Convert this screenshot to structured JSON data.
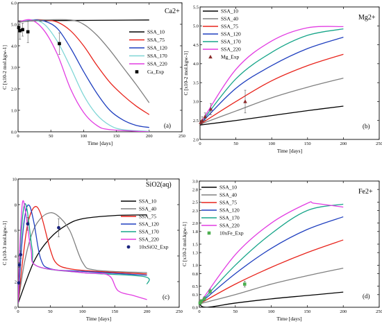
{
  "chart_data": [
    {
      "type": "line",
      "species": "Ca2+",
      "tag": "(a)",
      "xlabel": "Time [days]",
      "ylabel": "C [x10-2 mol.kgw-1]",
      "xlim": [
        0,
        250
      ],
      "ylim": [
        0.0,
        6.0
      ],
      "xticks": [
        "0",
        "50",
        "100",
        "150",
        "200",
        "250"
      ],
      "yticks": [
        "0.0",
        "1.0",
        "2.0",
        "3.0",
        "4.0",
        "5.0",
        "6.0"
      ],
      "legend_placement": "right",
      "series": [
        {
          "name": "SSA_10",
          "color": "#000000",
          "points": [
            [
              0,
              5.15
            ],
            [
              50,
              5.17
            ],
            [
              100,
              5.18
            ],
            [
              150,
              5.19
            ],
            [
              200,
              5.2
            ]
          ]
        },
        {
          "name": "SSA_75",
          "color": "#e8231b",
          "points": [
            [
              0,
              5.1
            ],
            [
              20,
              5.2
            ],
            [
              40,
              5.2
            ],
            [
              60,
              5.1
            ],
            [
              80,
              4.7
            ],
            [
              100,
              4.0
            ],
            [
              120,
              3.1
            ],
            [
              140,
              2.3
            ],
            [
              160,
              1.7
            ],
            [
              180,
              1.2
            ],
            [
              200,
              0.8
            ]
          ]
        },
        {
          "name": "SSA_120",
          "color": "#1f3fbf",
          "points": [
            [
              0,
              5.1
            ],
            [
              20,
              5.2
            ],
            [
              40,
              5.15
            ],
            [
              60,
              4.8
            ],
            [
              80,
              3.9
            ],
            [
              100,
              2.8
            ],
            [
              120,
              1.8
            ],
            [
              140,
              1.0
            ],
            [
              160,
              0.55
            ],
            [
              180,
              0.3
            ],
            [
              200,
              0.2
            ]
          ]
        },
        {
          "name": "SSA_170",
          "color": "#7fd6d6",
          "points": [
            [
              0,
              5.1
            ],
            [
              20,
              5.2
            ],
            [
              40,
              5.0
            ],
            [
              60,
              4.2
            ],
            [
              80,
              3.0
            ],
            [
              100,
              1.7
            ],
            [
              120,
              0.8
            ],
            [
              140,
              0.3
            ],
            [
              160,
              0.1
            ],
            [
              200,
              0.02
            ]
          ]
        },
        {
          "name": "SSA_220",
          "color": "#e23ce2",
          "points": [
            [
              0,
              5.1
            ],
            [
              20,
              5.2
            ],
            [
              40,
              4.7
            ],
            [
              60,
              3.6
            ],
            [
              80,
              2.0
            ],
            [
              100,
              0.9
            ],
            [
              120,
              0.3
            ],
            [
              140,
              0.1
            ],
            [
              200,
              0.0
            ]
          ]
        },
        {
          "name": "",
          "color": "#808080",
          "points": [
            [
              0,
              5.1
            ],
            [
              40,
              5.2
            ],
            [
              80,
              5.2
            ],
            [
              100,
              5.0
            ],
            [
              120,
              4.5
            ],
            [
              140,
              3.8
            ],
            [
              160,
              3.0
            ],
            [
              180,
              2.2
            ],
            [
              200,
              1.35
            ]
          ]
        }
      ],
      "exp": {
        "name": "Ca_Exp",
        "marker": "square",
        "color": "#000000",
        "points": [
          [
            1,
            4.85
          ],
          [
            3,
            4.7
          ],
          [
            7,
            4.75
          ],
          [
            15,
            4.65
          ],
          [
            63,
            4.1
          ]
        ],
        "err": [
          0.15,
          0.4,
          0.3,
          0.5,
          0.5
        ]
      }
    },
    {
      "type": "line",
      "species": "Mg2+",
      "tag": "(b)",
      "xlabel": "Time [days]",
      "ylabel": "C [x10-2 mol.kgw-1]",
      "xlim": [
        0,
        250
      ],
      "ylim": [
        2.0,
        5.5
      ],
      "xticks": [
        "0",
        "50",
        "100",
        "150",
        "200",
        "250"
      ],
      "yticks": [
        "2.0",
        "2.5",
        "3.0",
        "3.5",
        "4.0",
        "4.5",
        "5.0",
        "5.5"
      ],
      "legend_placement": "top-left",
      "series": [
        {
          "name": "SSA_10",
          "color": "#000000",
          "points": [
            [
              0,
              2.38
            ],
            [
              50,
              2.5
            ],
            [
              100,
              2.63
            ],
            [
              150,
              2.76
            ],
            [
              200,
              2.88
            ]
          ]
        },
        {
          "name": "SSA_40",
          "color": "#808080",
          "points": [
            [
              0,
              2.4
            ],
            [
              50,
              2.75
            ],
            [
              100,
              3.1
            ],
            [
              150,
              3.38
            ],
            [
              200,
              3.62
            ]
          ]
        },
        {
          "name": "SSA_75",
          "color": "#e8231b",
          "points": [
            [
              0,
              2.4
            ],
            [
              50,
              3.0
            ],
            [
              100,
              3.55
            ],
            [
              150,
              3.95
            ],
            [
              200,
              4.25
            ]
          ]
        },
        {
          "name": "SSA_120",
          "color": "#1f3fbf",
          "points": [
            [
              0,
              2.4
            ],
            [
              50,
              3.35
            ],
            [
              100,
              3.95
            ],
            [
              150,
              4.4
            ],
            [
              200,
              4.7
            ]
          ]
        },
        {
          "name": "SSA_170",
          "color": "#17a589",
          "points": [
            [
              0,
              2.4
            ],
            [
              50,
              3.6
            ],
            [
              100,
              4.3
            ],
            [
              150,
              4.75
            ],
            [
              200,
              4.92
            ]
          ]
        },
        {
          "name": "SSA_220",
          "color": "#e23ce2",
          "points": [
            [
              0,
              2.4
            ],
            [
              50,
              3.85
            ],
            [
              100,
              4.6
            ],
            [
              150,
              4.95
            ],
            [
              200,
              4.98
            ]
          ]
        }
      ],
      "exp": {
        "name": "Mg_Exp",
        "marker": "triangle",
        "color": "#8b2a2a",
        "points": [
          [
            1,
            2.45
          ],
          [
            3,
            2.5
          ],
          [
            7,
            2.6
          ],
          [
            15,
            2.8
          ],
          [
            63,
            3.0
          ]
        ],
        "err": [
          0.05,
          0.1,
          0.1,
          0.15,
          0.3
        ]
      }
    },
    {
      "type": "line",
      "species": "SiO2(aq)",
      "tag": "(c)",
      "xlabel": "Time [days]",
      "ylabel": "C [x10-3 mol.kgw-1]",
      "xlim": [
        0,
        250
      ],
      "ylim": [
        0,
        10
      ],
      "xticks": [
        "0",
        "50",
        "100",
        "150",
        "200",
        "250"
      ],
      "yticks": [
        "0",
        "2",
        "4",
        "6",
        "8",
        "10"
      ],
      "legend_placement": "right",
      "series": [
        {
          "name": "SSA_10",
          "color": "#000000",
          "points": [
            [
              0,
              0.3
            ],
            [
              25,
              3.6
            ],
            [
              50,
              5.4
            ],
            [
              75,
              6.4
            ],
            [
              100,
              6.9
            ],
            [
              150,
              7.15
            ],
            [
              200,
              7.2
            ]
          ]
        },
        {
          "name": "SSA_40",
          "color": "#808080",
          "points": [
            [
              0,
              0.3
            ],
            [
              10,
              3.5
            ],
            [
              20,
              5.5
            ],
            [
              30,
              6.6
            ],
            [
              45,
              7.3
            ],
            [
              60,
              7.2
            ],
            [
              80,
              6.0
            ],
            [
              100,
              3.5
            ],
            [
              120,
              2.9
            ],
            [
              200,
              2.7
            ]
          ]
        },
        {
          "name": "SSA_75",
          "color": "#e8231b",
          "points": [
            [
              0,
              0.3
            ],
            [
              8,
              4.0
            ],
            [
              15,
              6.5
            ],
            [
              25,
              7.8
            ],
            [
              35,
              7.3
            ],
            [
              50,
              4.5
            ],
            [
              60,
              3.4
            ],
            [
              80,
              3.0
            ],
            [
              120,
              2.8
            ],
            [
              200,
              2.6
            ]
          ]
        },
        {
          "name": "SSA_120",
          "color": "#1f3fbf",
          "points": [
            [
              0,
              0.3
            ],
            [
              6,
              5.0
            ],
            [
              12,
              7.5
            ],
            [
              18,
              7.9
            ],
            [
              25,
              6.5
            ],
            [
              35,
              3.8
            ],
            [
              50,
              3.0
            ],
            [
              100,
              2.8
            ],
            [
              200,
              2.5
            ]
          ]
        },
        {
          "name": "SSA_170",
          "color": "#17a589",
          "points": [
            [
              0,
              0.3
            ],
            [
              4,
              5.0
            ],
            [
              9,
              7.8
            ],
            [
              14,
              7.6
            ],
            [
              22,
              4.5
            ],
            [
              30,
              3.2
            ],
            [
              100,
              2.7
            ],
            [
              195,
              2.4
            ],
            [
              200,
              1.8
            ]
          ]
        },
        {
          "name": "SSA_220",
          "color": "#e23ce2",
          "points": [
            [
              0,
              0.3
            ],
            [
              3,
              5.0
            ],
            [
              7,
              8.2
            ],
            [
              12,
              7.3
            ],
            [
              20,
              4.5
            ],
            [
              30,
              3.2
            ],
            [
              100,
              2.7
            ],
            [
              140,
              2.5
            ],
            [
              155,
              1.3
            ],
            [
              180,
              0.9
            ],
            [
              200,
              0.6
            ]
          ]
        }
      ],
      "exp": {
        "name": "10xSiO2_Exp",
        "marker": "circle",
        "color": "#1a237e",
        "points": [
          [
            1,
            1.9
          ],
          [
            2,
            3.3
          ],
          [
            4,
            4.1
          ],
          [
            15,
            6.5
          ],
          [
            63,
            6.2
          ]
        ],
        "err": [
          0.1,
          0.2,
          0.3,
          0.5,
          0.7
        ]
      }
    },
    {
      "type": "line",
      "species": "Fe2+",
      "tag": "(d)",
      "xlabel": "Time [days]",
      "ylabel": "C [x10-2 mol.kgw-1]",
      "xlim": [
        0,
        250
      ],
      "ylim": [
        0.0,
        3.0
      ],
      "xticks": [
        "0",
        "50",
        "100",
        "150",
        "200",
        "250"
      ],
      "yticks": [
        "0.0",
        "0.3",
        "0.5",
        "0.8",
        "1.0",
        "1.3",
        "1.5",
        "1.8",
        "2.0",
        "2.3",
        "2.5",
        "2.8",
        "3.0"
      ],
      "legend_placement": "top-left",
      "series": [
        {
          "name": "SSA_10",
          "color": "#000000",
          "points": [
            [
              0,
              0.08
            ],
            [
              10,
              0.0
            ],
            [
              50,
              0.1
            ],
            [
              100,
              0.2
            ],
            [
              150,
              0.28
            ],
            [
              200,
              0.36
            ]
          ]
        },
        {
          "name": "SSA_40",
          "color": "#808080",
          "points": [
            [
              0,
              0.08
            ],
            [
              50,
              0.3
            ],
            [
              100,
              0.55
            ],
            [
              150,
              0.75
            ],
            [
              200,
              0.93
            ]
          ]
        },
        {
          "name": "SSA_75",
          "color": "#e8231b",
          "points": [
            [
              0,
              0.08
            ],
            [
              50,
              0.55
            ],
            [
              100,
              0.95
            ],
            [
              150,
              1.3
            ],
            [
              200,
              1.6
            ]
          ]
        },
        {
          "name": "SSA_120",
          "color": "#1f3fbf",
          "points": [
            [
              0,
              0.08
            ],
            [
              50,
              0.8
            ],
            [
              100,
              1.4
            ],
            [
              150,
              1.85
            ],
            [
              200,
              2.15
            ]
          ]
        },
        {
          "name": "SSA_170",
          "color": "#17a589",
          "points": [
            [
              0,
              0.08
            ],
            [
              50,
              1.0
            ],
            [
              100,
              1.75
            ],
            [
              150,
              2.3
            ],
            [
              200,
              2.45
            ]
          ]
        },
        {
          "name": "SSA_220",
          "color": "#e23ce2",
          "points": [
            [
              0,
              0.08
            ],
            [
              50,
              1.25
            ],
            [
              100,
              2.0
            ],
            [
              150,
              2.47
            ],
            [
              160,
              2.47
            ],
            [
              200,
              2.38
            ]
          ]
        }
      ],
      "exp": {
        "name": "10xFe_Exp",
        "marker": "square",
        "color": "#4caf50",
        "points": [
          [
            1,
            0.1
          ],
          [
            3,
            0.15
          ],
          [
            7,
            0.2
          ],
          [
            15,
            0.38
          ],
          [
            63,
            0.55
          ]
        ],
        "err": [
          0.03,
          0.03,
          0.05,
          0.05,
          0.07
        ]
      }
    }
  ]
}
